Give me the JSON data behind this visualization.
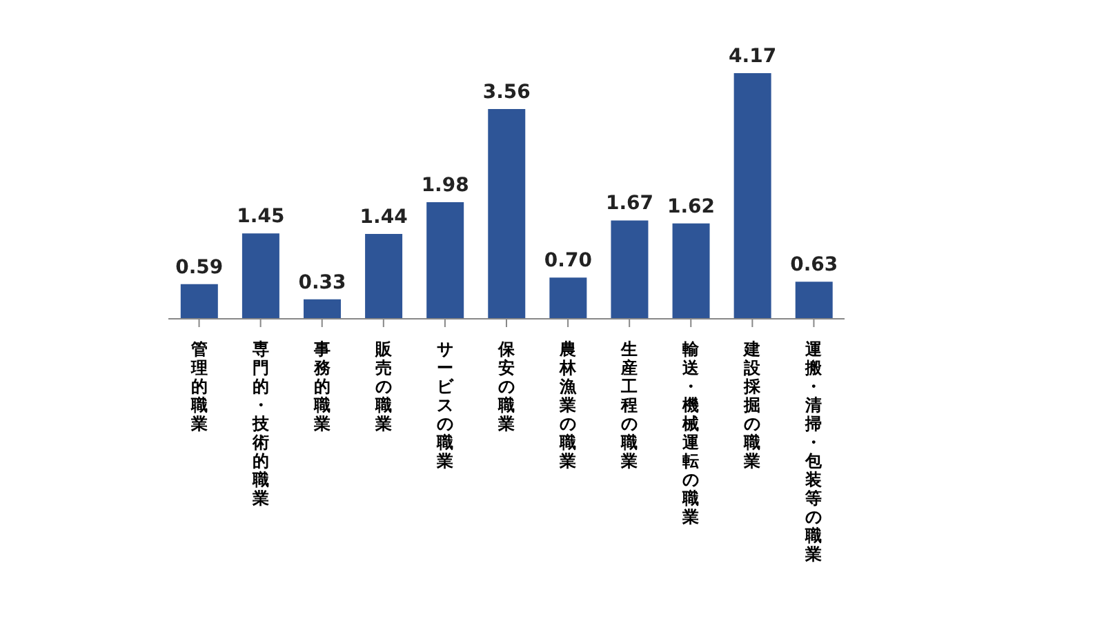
{
  "chart_data": {
    "type": "bar",
    "categories": [
      "管理的職業",
      "専門的・技術的職業",
      "事務的職業",
      "販売の職業",
      "サービスの職業",
      "保安の職業",
      "農林漁業の職業",
      "生産工程の職業",
      "輸送・機械運転の職業",
      "建設採掘の職業",
      "運搬・清掃・包装等の職業"
    ],
    "values": [
      0.59,
      1.45,
      0.33,
      1.44,
      1.98,
      3.56,
      0.7,
      1.67,
      1.62,
      4.17,
      0.63
    ],
    "value_labels": [
      "0.59",
      "1.45",
      "0.33",
      "1.44",
      "1.98",
      "3.56",
      "0.70",
      "1.67",
      "1.62",
      "4.17",
      "0.63"
    ],
    "color": "#2e5597",
    "grid": false,
    "legend": false
  }
}
